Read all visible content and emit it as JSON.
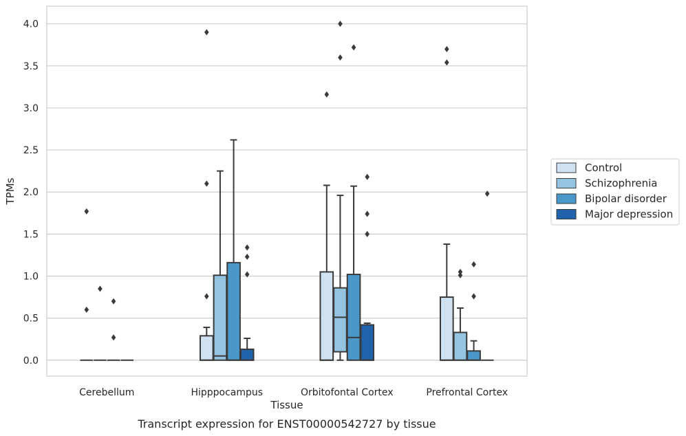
{
  "caption": "Transcript expression for ENST00000542727 by tissue",
  "chart_data": {
    "type": "boxplot",
    "title": "",
    "xlabel": "Tissue",
    "ylabel": "TPMs",
    "ylim": [
      -0.19,
      4.21
    ],
    "yticks": [
      0.0,
      0.5,
      1.0,
      1.5,
      2.0,
      2.5,
      3.0,
      3.5,
      4.0
    ],
    "ytick_labels": [
      "0.0",
      "0.5",
      "1.0",
      "1.5",
      "2.0",
      "2.5",
      "3.0",
      "3.5",
      "4.0"
    ],
    "grid": "horizontal",
    "legend_position": "right",
    "categories": [
      "Cerebellum",
      "Hipppocampus",
      "Orbitofontal Cortex",
      "Prefrontal Cortex"
    ],
    "series": [
      {
        "name": "Control",
        "color": "#d0e1f2",
        "boxes": [
          {
            "q1": 0.0,
            "median": 0.0,
            "q3": 0.0,
            "whislo": 0.0,
            "whishi": 0.0,
            "fliers": [
              1.77,
              0.6
            ]
          },
          {
            "q1": 0.0,
            "median": 0.0,
            "q3": 0.29,
            "whislo": 0.0,
            "whishi": 0.39,
            "fliers": [
              3.9,
              2.1,
              0.76
            ]
          },
          {
            "q1": 0.0,
            "median": 0.0,
            "q3": 1.05,
            "whislo": 0.0,
            "whishi": 2.08,
            "fliers": [
              3.16
            ]
          },
          {
            "q1": 0.0,
            "median": 0.0,
            "q3": 0.75,
            "whislo": 0.0,
            "whishi": 1.38,
            "fliers": [
              3.7,
              3.54
            ]
          }
        ]
      },
      {
        "name": "Schizophrenia",
        "color": "#94c4df",
        "boxes": [
          {
            "q1": 0.0,
            "median": 0.0,
            "q3": 0.0,
            "whislo": 0.0,
            "whishi": 0.0,
            "fliers": [
              0.85
            ]
          },
          {
            "q1": 0.0,
            "median": 0.05,
            "q3": 1.01,
            "whislo": 0.0,
            "whishi": 2.25,
            "fliers": []
          },
          {
            "q1": 0.1,
            "median": 0.51,
            "q3": 0.86,
            "whislo": 0.0,
            "whishi": 1.96,
            "fliers": [
              4.0,
              3.6
            ]
          },
          {
            "q1": 0.0,
            "median": 0.0,
            "q3": 0.33,
            "whislo": 0.0,
            "whishi": 0.62,
            "fliers": [
              1.05,
              1.01
            ]
          }
        ]
      },
      {
        "name": "Bipolar disorder",
        "color": "#4a98c9",
        "boxes": [
          {
            "q1": 0.0,
            "median": 0.0,
            "q3": 0.0,
            "whislo": 0.0,
            "whishi": 0.0,
            "fliers": [
              0.7,
              0.27
            ]
          },
          {
            "q1": 0.0,
            "median": 0.0,
            "q3": 1.16,
            "whislo": 0.0,
            "whishi": 2.62,
            "fliers": []
          },
          {
            "q1": 0.0,
            "median": 0.27,
            "q3": 1.02,
            "whislo": 0.0,
            "whishi": 2.07,
            "fliers": [
              3.72
            ]
          },
          {
            "q1": 0.0,
            "median": 0.0,
            "q3": 0.11,
            "whislo": 0.0,
            "whishi": 0.23,
            "fliers": [
              1.14,
              0.76
            ]
          }
        ]
      },
      {
        "name": "Major depression",
        "color": "#2163aa",
        "boxes": [
          {
            "q1": 0.0,
            "median": 0.0,
            "q3": 0.0,
            "whislo": 0.0,
            "whishi": 0.0,
            "fliers": []
          },
          {
            "q1": 0.0,
            "median": 0.0,
            "q3": 0.13,
            "whislo": 0.0,
            "whishi": 0.26,
            "fliers": [
              1.34,
              1.23,
              1.02
            ]
          },
          {
            "q1": 0.0,
            "median": 0.0,
            "q3": 0.42,
            "whislo": 0.0,
            "whishi": 0.44,
            "fliers": [
              2.18,
              1.74,
              1.5
            ]
          },
          {
            "q1": 0.0,
            "median": 0.0,
            "q3": 0.0,
            "whislo": 0.0,
            "whishi": 0.0,
            "fliers": [
              1.98
            ]
          }
        ]
      }
    ]
  }
}
